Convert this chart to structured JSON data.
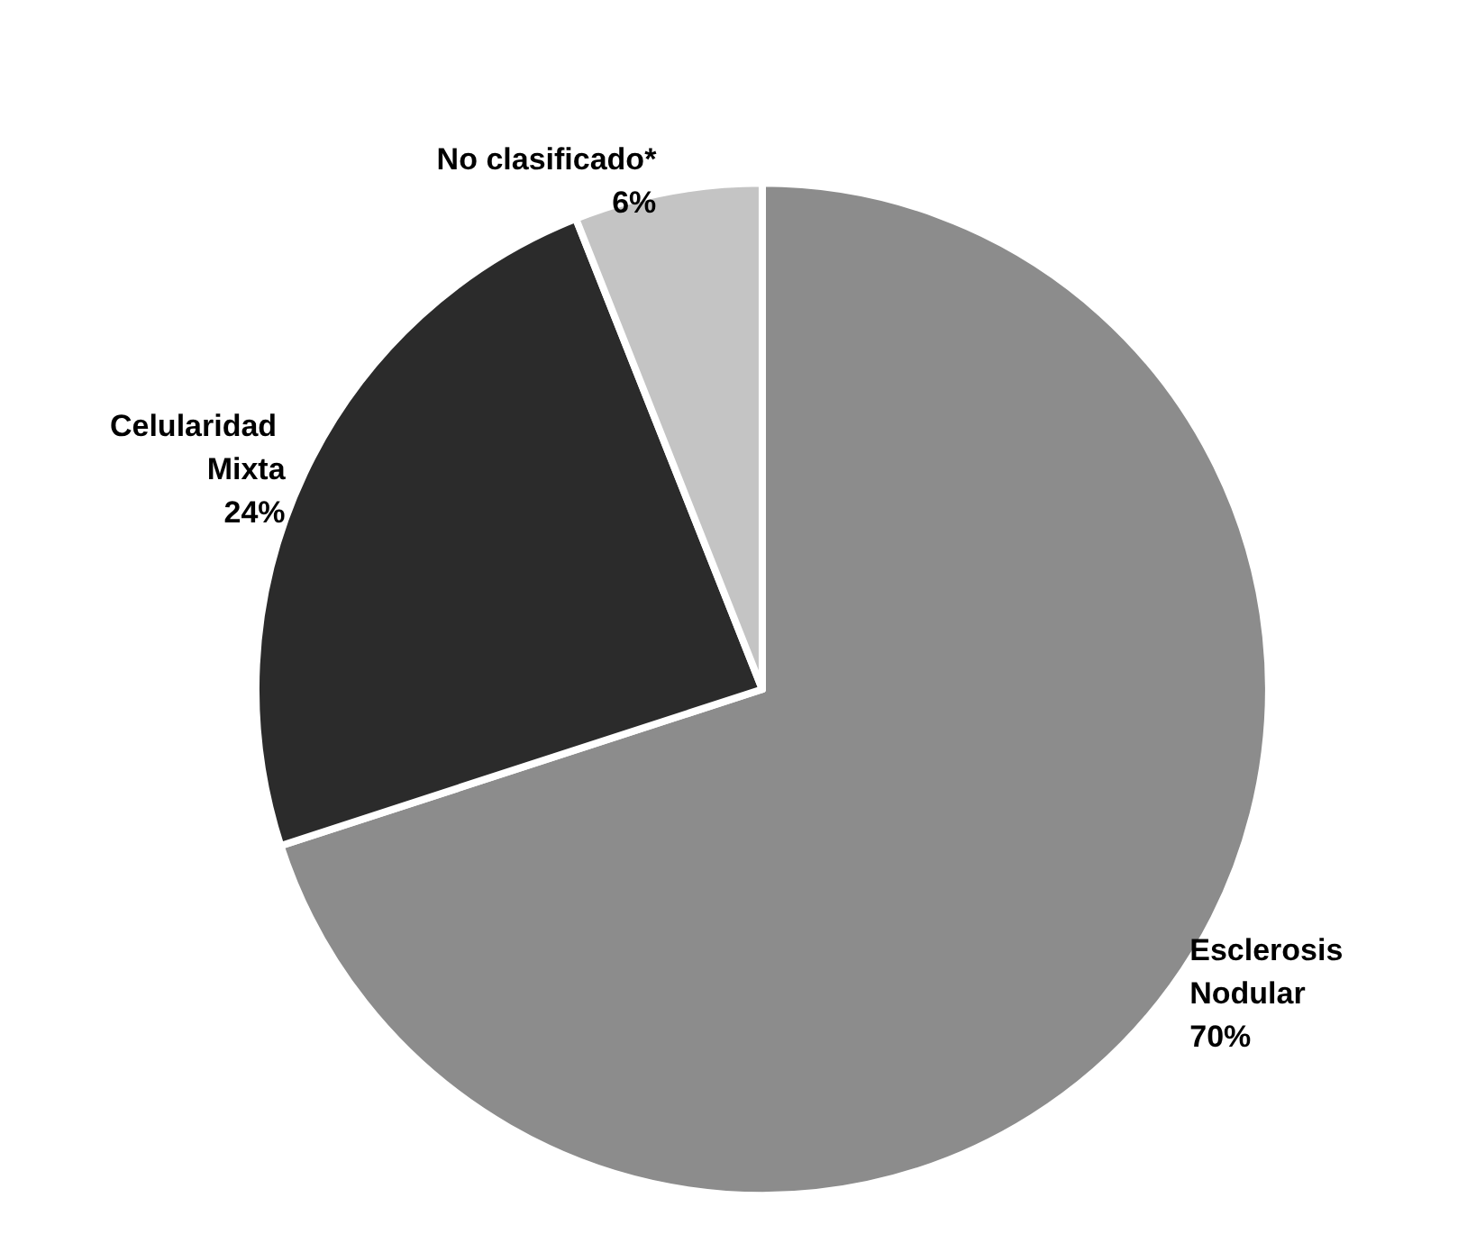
{
  "chart_data": {
    "type": "pie",
    "categories": [
      "Esclerosis Nodular",
      "Celularidad Mixta",
      "No clasificado*"
    ],
    "values": [
      70,
      24,
      6
    ],
    "value_labels": [
      "70%",
      "24%",
      "6%"
    ],
    "colors": [
      "#8c8c8c",
      "#2b2b2b",
      "#c4c4c4"
    ],
    "legend": false
  }
}
